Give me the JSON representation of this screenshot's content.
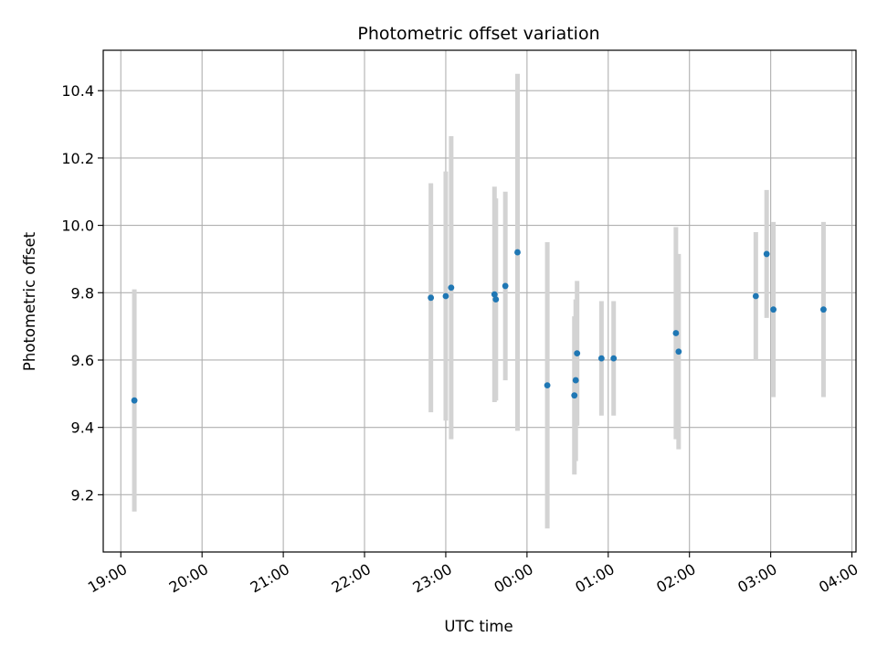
{
  "chart_data": {
    "type": "scatter",
    "title": "Photometric offset variation",
    "xlabel": "UTC time",
    "ylabel": "Photometric offset",
    "x_ticks": [
      "19:00",
      "20:00",
      "21:00",
      "22:00",
      "23:00",
      "00:00",
      "01:00",
      "02:00",
      "03:00",
      "04:00"
    ],
    "y_ticks": [
      "9.2",
      "9.4",
      "9.6",
      "9.8",
      "10.0",
      "10.2",
      "10.4"
    ],
    "xlim": [
      "18:47",
      "04:03"
    ],
    "ylim": [
      9.03,
      10.52
    ],
    "grid": true,
    "marker_color": "#1f77b4",
    "errorbar_color": "#d3d3d3",
    "points": [
      {
        "t": "19:10",
        "y": 9.48,
        "err": 0.33
      },
      {
        "t": "22:49",
        "y": 9.785,
        "err": 0.34
      },
      {
        "t": "23:00",
        "y": 9.79,
        "err": 0.37
      },
      {
        "t": "23:04",
        "y": 9.815,
        "err": 0.45
      },
      {
        "t": "23:36",
        "y": 9.795,
        "err": 0.32
      },
      {
        "t": "23:37",
        "y": 9.78,
        "err": 0.3
      },
      {
        "t": "23:44",
        "y": 9.82,
        "err": 0.28
      },
      {
        "t": "23:53",
        "y": 9.92,
        "err": 0.53
      },
      {
        "t": "00:15",
        "y": 9.525,
        "err": 0.425
      },
      {
        "t": "00:35",
        "y": 9.495,
        "err": 0.235
      },
      {
        "t": "00:36",
        "y": 9.54,
        "err": 0.24
      },
      {
        "t": "00:37",
        "y": 9.62,
        "err": 0.215
      },
      {
        "t": "00:55",
        "y": 9.605,
        "err": 0.17
      },
      {
        "t": "01:04",
        "y": 9.605,
        "err": 0.17
      },
      {
        "t": "01:50",
        "y": 9.68,
        "err": 0.315
      },
      {
        "t": "01:52",
        "y": 9.625,
        "err": 0.29
      },
      {
        "t": "02:49",
        "y": 9.79,
        "err": 0.19
      },
      {
        "t": "02:57",
        "y": 9.915,
        "err": 0.19
      },
      {
        "t": "03:02",
        "y": 9.75,
        "err": 0.26
      },
      {
        "t": "03:39",
        "y": 9.75,
        "err": 0.26
      }
    ]
  }
}
